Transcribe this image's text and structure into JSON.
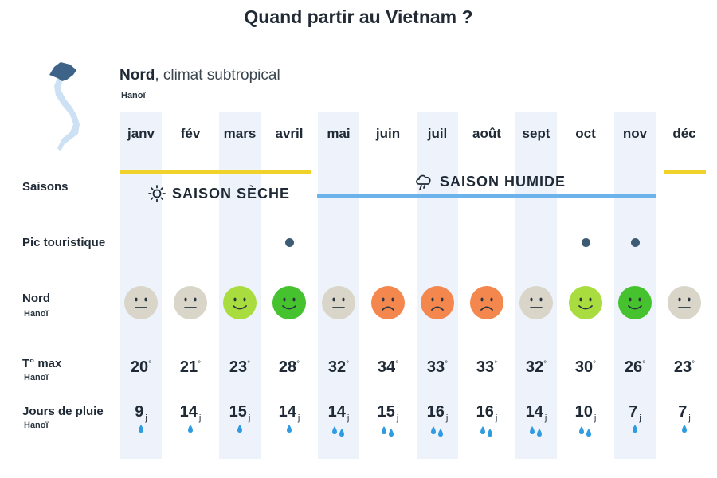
{
  "title": "Quand partir au Vietnam ?",
  "region": {
    "name": "Nord",
    "climate": ", climat subtropical",
    "city": "Hanoï"
  },
  "months": [
    "janv",
    "fév",
    "mars",
    "avril",
    "mai",
    "juin",
    "juil",
    "août",
    "sept",
    "oct",
    "nov",
    "déc"
  ],
  "rows": {
    "seasons": "Saisons",
    "peak": "Pic touristique",
    "region": "Nord",
    "region_city": "Hanoï",
    "tmax": "T° max",
    "tmax_city": "Hanoï",
    "rain": "Jours de pluie",
    "rain_city": "Hanoï"
  },
  "seasons": {
    "dry": {
      "label": "SAISON SÈCHE",
      "color": "#f0d22a",
      "months": [
        "janv",
        "fév",
        "mars",
        "avril",
        "déc"
      ]
    },
    "wet": {
      "label": "SAISON HUMIDE",
      "color": "#6cb3ec",
      "months": [
        "mai",
        "juin",
        "juil",
        "août",
        "sept",
        "oct",
        "nov"
      ]
    }
  },
  "peak_months": [
    "avril",
    "oct",
    "nov"
  ],
  "rating_colors": {
    "neutral": "#d9d6c9",
    "good": "#a9dd3f",
    "great": "#46c22f",
    "bad": "#f4874e"
  },
  "ratings": [
    "neutral",
    "neutral",
    "good",
    "great",
    "neutral",
    "bad",
    "bad",
    "bad",
    "neutral",
    "good",
    "great",
    "neutral"
  ],
  "temps": [
    "20",
    "21",
    "23",
    "28",
    "32",
    "34",
    "33",
    "33",
    "32",
    "30",
    "26",
    "23"
  ],
  "temp_unit": "°",
  "rain_days": [
    "9",
    "14",
    "15",
    "14",
    "14",
    "15",
    "16",
    "16",
    "14",
    "10",
    "7",
    "7"
  ],
  "rain_unit": "j",
  "drop_counts": [
    1,
    1,
    1,
    1,
    2,
    2,
    2,
    2,
    2,
    2,
    1,
    1
  ],
  "drop_color": "#2f9be0",
  "band_color": "#eef3fb"
}
